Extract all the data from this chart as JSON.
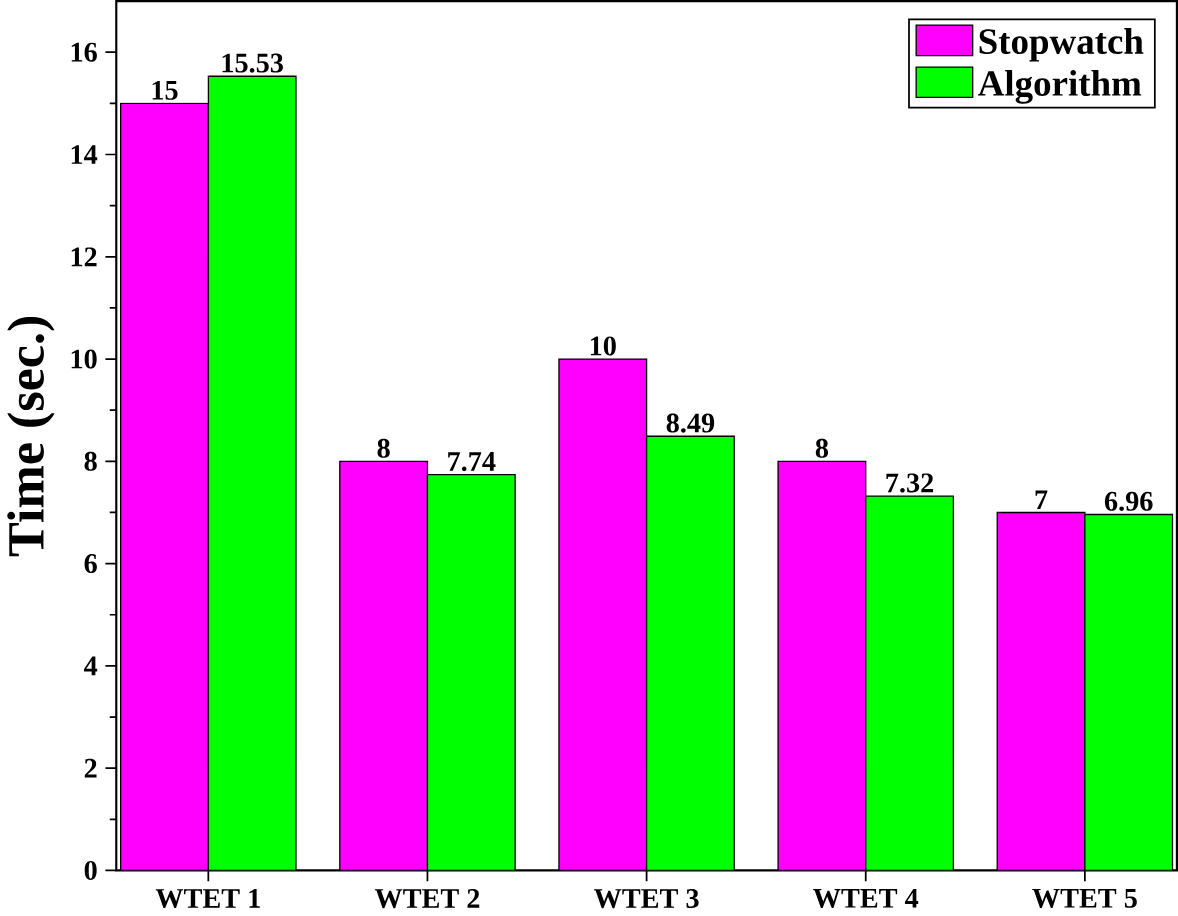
{
  "chart_data": {
    "type": "bar",
    "ylabel": "Time (sec.)",
    "categories": [
      "WTET 1",
      "WTET 2",
      "WTET 3",
      "WTET 4",
      "WTET 5"
    ],
    "series": [
      {
        "name": "Stopwatch",
        "color": "#ff00ff",
        "values": [
          15,
          8,
          10,
          8,
          7
        ]
      },
      {
        "name": "Algorithm",
        "color": "#00ff00",
        "values": [
          15.53,
          7.74,
          8.49,
          7.32,
          6.96
        ]
      }
    ],
    "ylim": [
      0,
      17
    ],
    "yticks": [
      0,
      2,
      4,
      6,
      8,
      10,
      12,
      14,
      16
    ],
    "data_labels": true,
    "legend": "top right",
    "grid": false
  }
}
